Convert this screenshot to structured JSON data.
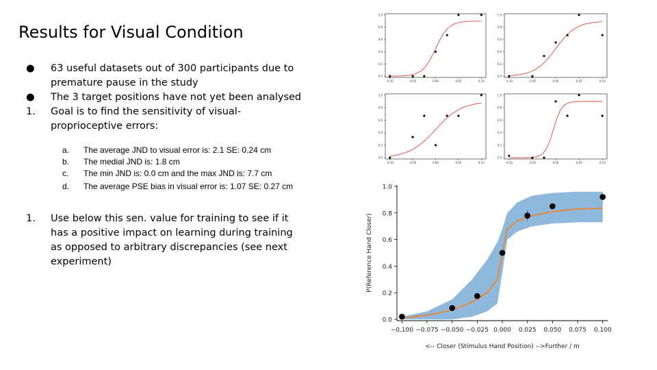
{
  "slide": {
    "title": "Results for Visual Condition",
    "bullets": [
      {
        "marker": "●",
        "text": "63 useful datasets out of 300 participants due to premature pause in the study"
      },
      {
        "marker": "●",
        "text": "The 3 target positions have not yet been analysed"
      },
      {
        "marker": "1.",
        "text": "Goal is to find the sensitivity of visual-proprioceptive errors:"
      }
    ],
    "sub_items": [
      {
        "marker": "a.",
        "text": "The average  JND to visual  error is:  2.1 SE: 0.24  cm"
      },
      {
        "marker": "b.",
        "text": "The medial JND is:  1.8 cm"
      },
      {
        "marker": "c.",
        "text": "The min JND is:  0.0 cm and the max JND is:  7.7 cm"
      },
      {
        "marker": "d.",
        "text": "The average  PSE bias in visual  error is:  1.07 SE: 0.27 cm"
      }
    ],
    "final_item": {
      "marker": "1.",
      "text": "Use below this sen. value for training to see if it has a positive impact on learning during training as opposed to arbitrary discrepancies (see next experiment)"
    }
  },
  "colors": {
    "fit_small": "#e8433a",
    "fit_main": "#f08228",
    "band": "#8fb9dc",
    "points": "#000000"
  },
  "chart_data": [
    {
      "type": "scatter",
      "x": [
        -0.1,
        -0.05,
        -0.025,
        0.0,
        0.025,
        0.05,
        0.1
      ],
      "values": [
        0.0,
        0.0,
        0.0,
        0.4,
        0.67,
        1.0,
        1.0
      ],
      "fit": "sigmoid",
      "fit_pse": 0.0,
      "fit_slope": 70,
      "fit_max": 0.9,
      "xticks": [
        "-0.10",
        "-0.05",
        "0.00",
        "0.05",
        "0.10"
      ],
      "yticks": [
        "0.0",
        "0.2",
        "0.4",
        "0.6",
        "0.8",
        "1.0"
      ],
      "xlim": [
        -0.11,
        0.11
      ],
      "ylim": [
        -0.02,
        1.02
      ]
    },
    {
      "type": "scatter",
      "x": [
        -0.1,
        -0.05,
        -0.025,
        0.0,
        0.025,
        0.05,
        0.1
      ],
      "values": [
        0.0,
        0.0,
        0.33,
        0.55,
        0.67,
        1.0,
        0.67
      ],
      "fit": "sigmoid",
      "fit_pse": 0.0,
      "fit_slope": 45,
      "fit_max": 0.9,
      "xticks": [
        "-0.10",
        "-0.05",
        "0.00",
        "0.05",
        "0.10"
      ],
      "yticks": [
        "0.0",
        "0.2",
        "0.4",
        "0.6",
        "0.8",
        "1.0"
      ],
      "xlim": [
        -0.11,
        0.11
      ],
      "ylim": [
        -0.02,
        1.02
      ]
    },
    {
      "type": "scatter",
      "x": [
        -0.1,
        -0.05,
        -0.025,
        0.0,
        0.025,
        0.05,
        0.1
      ],
      "values": [
        0.0,
        0.33,
        0.67,
        0.2,
        0.67,
        0.67,
        1.0
      ],
      "fit": "sigmoid",
      "fit_pse": 0.0,
      "fit_slope": 35,
      "fit_max": 0.9,
      "xticks": [
        "-0.10",
        "-0.05",
        "0.00",
        "0.05",
        "0.10"
      ],
      "yticks": [
        "0.0",
        "0.2",
        "0.4",
        "0.6",
        "0.8",
        "1.0"
      ],
      "xlim": [
        -0.11,
        0.11
      ],
      "ylim": [
        -0.02,
        1.02
      ]
    },
    {
      "type": "scatter",
      "x": [
        -0.1,
        -0.05,
        -0.025,
        0.0,
        0.025,
        0.05,
        0.1
      ],
      "values": [
        0.03,
        0.0,
        0.0,
        0.9,
        0.67,
        1.0,
        0.67
      ],
      "fit": "sigmoid",
      "fit_pse": -0.005,
      "fit_slope": 110,
      "fit_max": 0.9,
      "xticks": [
        "-0.10",
        "-0.05",
        "0.00",
        "0.05",
        "0.10"
      ],
      "yticks": [
        "0.0",
        "0.2",
        "0.4",
        "0.6",
        "0.8",
        "1.0"
      ],
      "xlim": [
        -0.11,
        0.11
      ],
      "ylim": [
        -0.02,
        1.02
      ]
    },
    {
      "type": "scatter",
      "x": [
        -0.1,
        -0.05,
        -0.025,
        0.0,
        0.025,
        0.05,
        0.1
      ],
      "values": [
        0.02,
        0.085,
        0.175,
        0.5,
        0.78,
        0.85,
        0.92
      ],
      "errors": [
        0.0,
        0.0,
        0.02,
        0.0,
        0.04,
        0.0,
        0.0
      ],
      "fit_x": [
        -0.1,
        -0.075,
        -0.05,
        -0.03,
        -0.015,
        -0.005,
        0.0,
        0.005,
        0.015,
        0.03,
        0.05,
        0.075,
        0.1
      ],
      "fit_y": [
        0.01,
        0.03,
        0.07,
        0.13,
        0.2,
        0.3,
        0.5,
        0.68,
        0.74,
        0.78,
        0.81,
        0.83,
        0.835
      ],
      "band_low": [
        0.0,
        0.0,
        0.0,
        0.02,
        0.06,
        0.12,
        0.35,
        0.6,
        0.66,
        0.7,
        0.72,
        0.73,
        0.73
      ],
      "band_high": [
        0.02,
        0.06,
        0.15,
        0.3,
        0.45,
        0.58,
        0.68,
        0.8,
        0.88,
        0.93,
        0.95,
        0.96,
        0.96
      ],
      "xlabel": "<-- Closer (Stimulus Hand Position) -->Further / m",
      "ylabel": "P(Reference Hand Closer)",
      "xticks": [
        "−0.100",
        "−0.075",
        "−0.050",
        "−0.025",
        "0.000",
        "0.025",
        "0.050",
        "0.075",
        "0.100"
      ],
      "yticks": [
        "0.0",
        "0.2",
        "0.4",
        "0.6",
        "0.8",
        "1.0"
      ],
      "xlim": [
        -0.105,
        0.105
      ],
      "ylim": [
        -0.01,
        1.01
      ]
    }
  ]
}
